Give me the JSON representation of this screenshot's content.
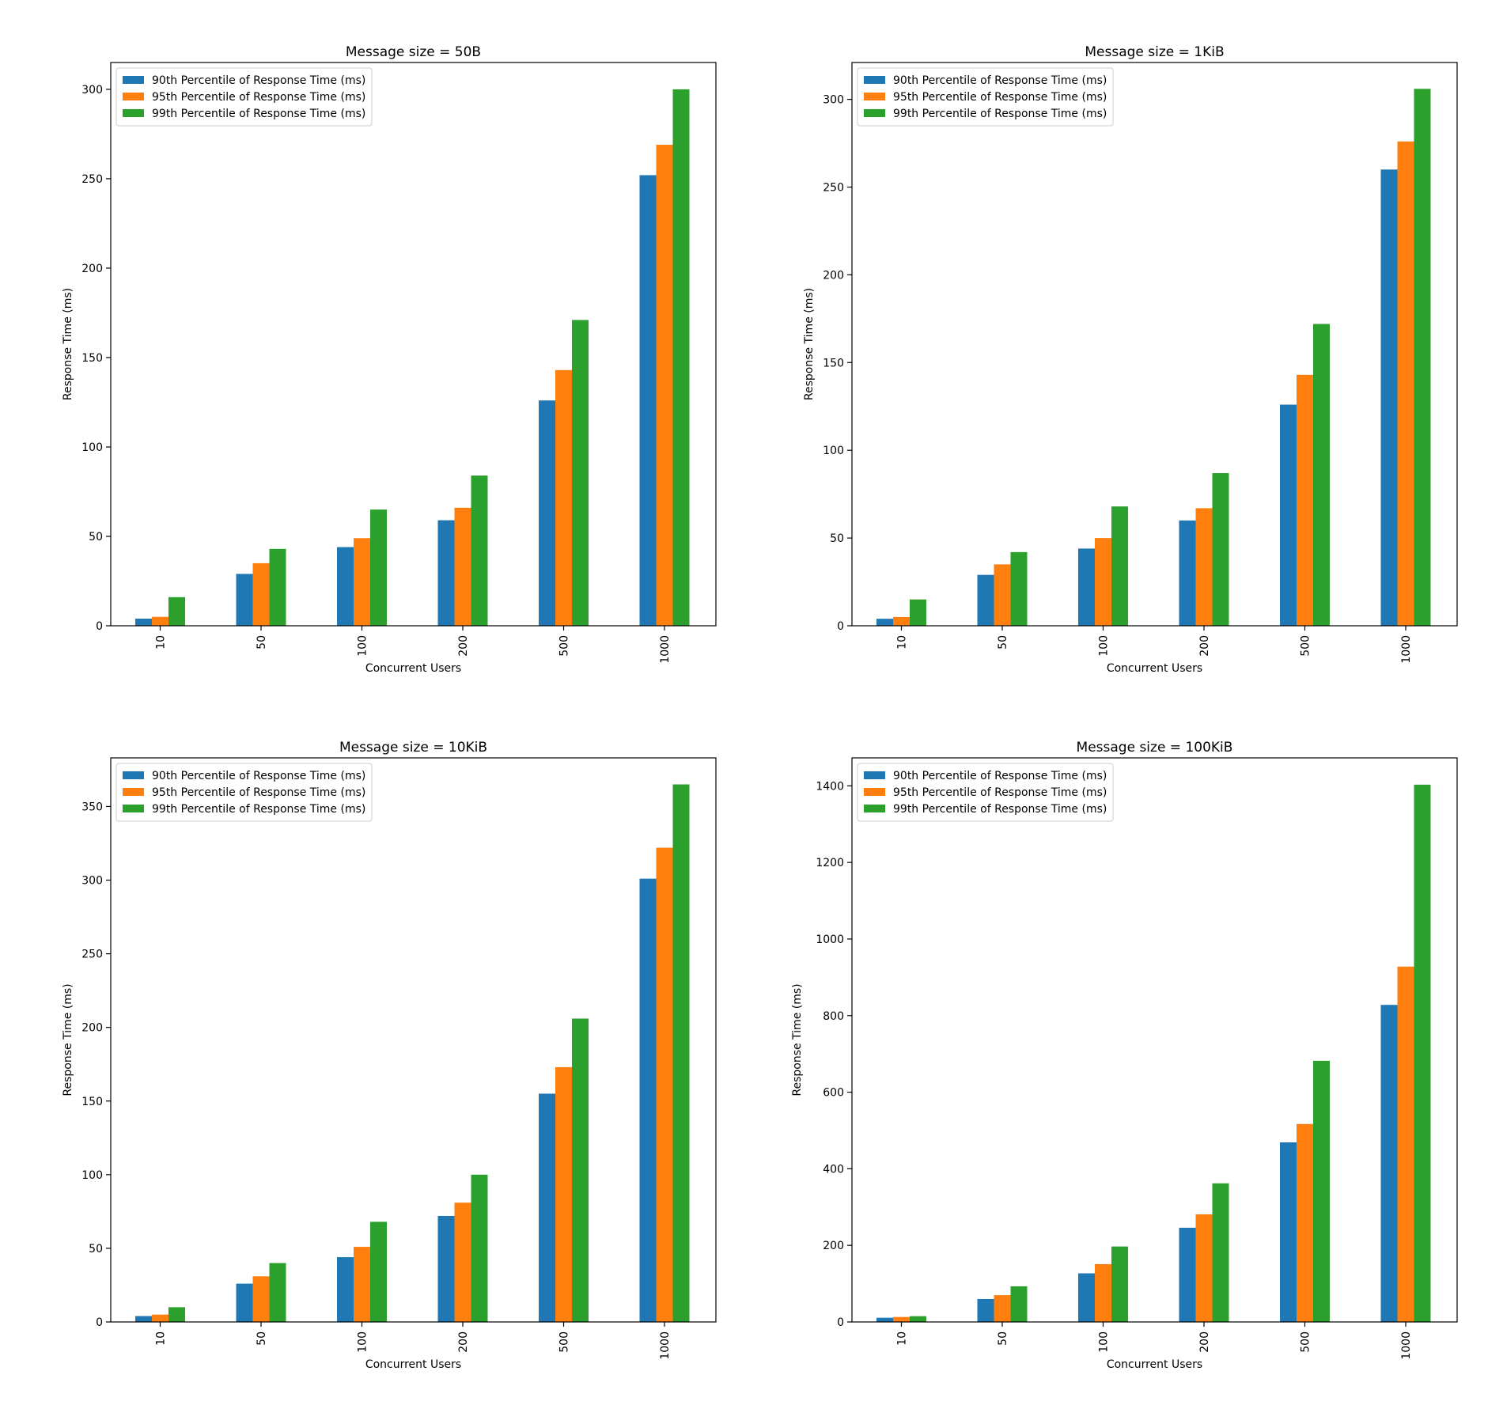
{
  "chart_data": [
    {
      "type": "bar",
      "title": "Message size = 50B",
      "xlabel": "Concurrent Users",
      "ylabel": "Response Time (ms)",
      "categories": [
        "10",
        "50",
        "100",
        "200",
        "500",
        "1000"
      ],
      "ylim": [
        0,
        315
      ],
      "yticks": [
        0,
        50,
        100,
        150,
        200,
        250,
        300
      ],
      "grid": false,
      "legend_position": "upper left",
      "series": [
        {
          "name": "90th Percentile of Response Time (ms)",
          "color": "#1f77b4",
          "values": [
            4,
            29,
            44,
            59,
            126,
            252
          ]
        },
        {
          "name": "95th Percentile of Response Time (ms)",
          "color": "#ff7f0e",
          "values": [
            5,
            35,
            49,
            66,
            143,
            269
          ]
        },
        {
          "name": "99th Percentile of Response Time (ms)",
          "color": "#2ca02c",
          "values": [
            16,
            43,
            65,
            84,
            171,
            300
          ]
        }
      ]
    },
    {
      "type": "bar",
      "title": "Message size = 1KiB",
      "xlabel": "Concurrent Users",
      "ylabel": "Response Time (ms)",
      "categories": [
        "10",
        "50",
        "100",
        "200",
        "500",
        "1000"
      ],
      "ylim": [
        0,
        321
      ],
      "yticks": [
        0,
        50,
        100,
        150,
        200,
        250,
        300
      ],
      "grid": false,
      "legend_position": "upper left",
      "series": [
        {
          "name": "90th Percentile of Response Time (ms)",
          "color": "#1f77b4",
          "values": [
            4,
            29,
            44,
            60,
            126,
            260
          ]
        },
        {
          "name": "95th Percentile of Response Time (ms)",
          "color": "#ff7f0e",
          "values": [
            5,
            35,
            50,
            67,
            143,
            276
          ]
        },
        {
          "name": "99th Percentile of Response Time (ms)",
          "color": "#2ca02c",
          "values": [
            15,
            42,
            68,
            87,
            172,
            306
          ]
        }
      ]
    },
    {
      "type": "bar",
      "title": "Message size = 10KiB",
      "xlabel": "Concurrent Users",
      "ylabel": "Response Time (ms)",
      "categories": [
        "10",
        "50",
        "100",
        "200",
        "500",
        "1000"
      ],
      "ylim": [
        0,
        383
      ],
      "yticks": [
        0,
        50,
        100,
        150,
        200,
        250,
        300,
        350
      ],
      "grid": false,
      "legend_position": "upper left",
      "series": [
        {
          "name": "90th Percentile of Response Time (ms)",
          "color": "#1f77b4",
          "values": [
            4,
            26,
            44,
            72,
            155,
            301
          ]
        },
        {
          "name": "95th Percentile of Response Time (ms)",
          "color": "#ff7f0e",
          "values": [
            5,
            31,
            51,
            81,
            173,
            322
          ]
        },
        {
          "name": "99th Percentile of Response Time (ms)",
          "color": "#2ca02c",
          "values": [
            10,
            40,
            68,
            100,
            206,
            365
          ]
        }
      ]
    },
    {
      "type": "bar",
      "title": "Message size = 100KiB",
      "xlabel": "Concurrent Users",
      "ylabel": "Response Time (ms)",
      "categories": [
        "10",
        "50",
        "100",
        "200",
        "500",
        "1000"
      ],
      "ylim": [
        0,
        1473
      ],
      "yticks": [
        0,
        200,
        400,
        600,
        800,
        1000,
        1200,
        1400
      ],
      "grid": false,
      "legend_position": "upper left",
      "series": [
        {
          "name": "90th Percentile of Response Time (ms)",
          "color": "#1f77b4",
          "values": [
            11,
            60,
            127,
            246,
            469,
            828
          ]
        },
        {
          "name": "95th Percentile of Response Time (ms)",
          "color": "#ff7f0e",
          "values": [
            13,
            70,
            151,
            281,
            517,
            928
          ]
        },
        {
          "name": "99th Percentile of Response Time (ms)",
          "color": "#2ca02c",
          "values": [
            15,
            93,
            197,
            362,
            682,
            1403
          ]
        }
      ]
    }
  ]
}
